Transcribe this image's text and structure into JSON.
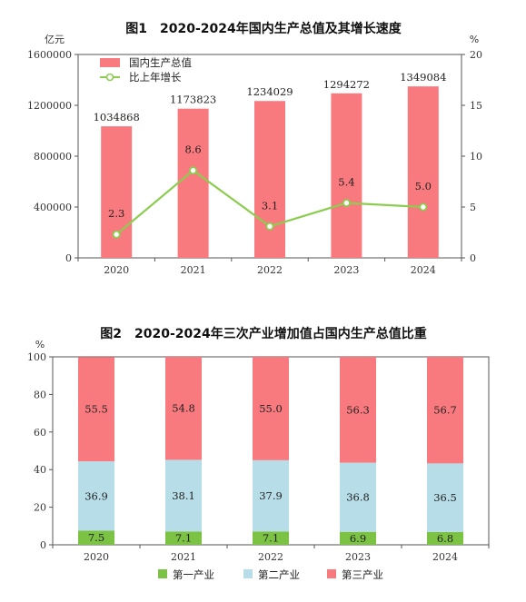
{
  "colors": {
    "gdp_bar": "#f97a7e",
    "growth_line": "#8ccc50",
    "primary": "#7cc244",
    "secondary": "#b7dee8",
    "tertiary": "#f97a7e"
  },
  "chart_data": [
    {
      "type": "bar",
      "title": "图1　2020-2024年国内生产总值及其增长速度",
      "ylabel": "亿元",
      "y2label": "%",
      "categories": [
        "2020",
        "2021",
        "2022",
        "2023",
        "2024"
      ],
      "ylim": [
        0,
        1600000
      ],
      "yticks": [
        "0",
        "400000",
        "800000",
        "1200000",
        "1600000"
      ],
      "y2lim": [
        0,
        20
      ],
      "y2ticks": [
        "0",
        "5",
        "10",
        "15",
        "20"
      ],
      "legend_position": "top-left",
      "series": [
        {
          "name": "国内生产总值",
          "type": "bar",
          "axis": "left",
          "values": [
            1034868,
            1173823,
            1234029,
            1294272,
            1349084
          ],
          "labels": [
            "1034868",
            "1173823",
            "1234029",
            "1294272",
            "1349084"
          ]
        },
        {
          "name": "比上年增长",
          "type": "line",
          "axis": "right",
          "values": [
            2.3,
            8.6,
            3.1,
            5.4,
            5.0
          ],
          "labels": [
            "2.3",
            "8.6",
            "3.1",
            "5.4",
            "5.0"
          ]
        }
      ]
    },
    {
      "type": "bar",
      "stacked": true,
      "title": "图2　2020-2024年三次产业增加值占国内生产总值比重",
      "ylabel": "%",
      "categories": [
        "2020",
        "2021",
        "2022",
        "2023",
        "2024"
      ],
      "ylim": [
        0,
        100
      ],
      "yticks": [
        "0",
        "20",
        "40",
        "60",
        "80",
        "100"
      ],
      "legend_position": "bottom",
      "series": [
        {
          "name": "第一产业",
          "values": [
            7.5,
            7.1,
            7.1,
            6.9,
            6.8
          ],
          "labels": [
            "7.5",
            "7.1",
            "7.1",
            "6.9",
            "6.8"
          ]
        },
        {
          "name": "第二产业",
          "values": [
            36.9,
            38.1,
            37.9,
            36.8,
            36.5
          ],
          "labels": [
            "36.9",
            "38.1",
            "37.9",
            "36.8",
            "36.5"
          ]
        },
        {
          "name": "第三产业",
          "values": [
            55.5,
            54.8,
            55.0,
            56.3,
            56.7
          ],
          "labels": [
            "55.5",
            "54.8",
            "55.0",
            "56.3",
            "56.7"
          ]
        }
      ]
    }
  ]
}
